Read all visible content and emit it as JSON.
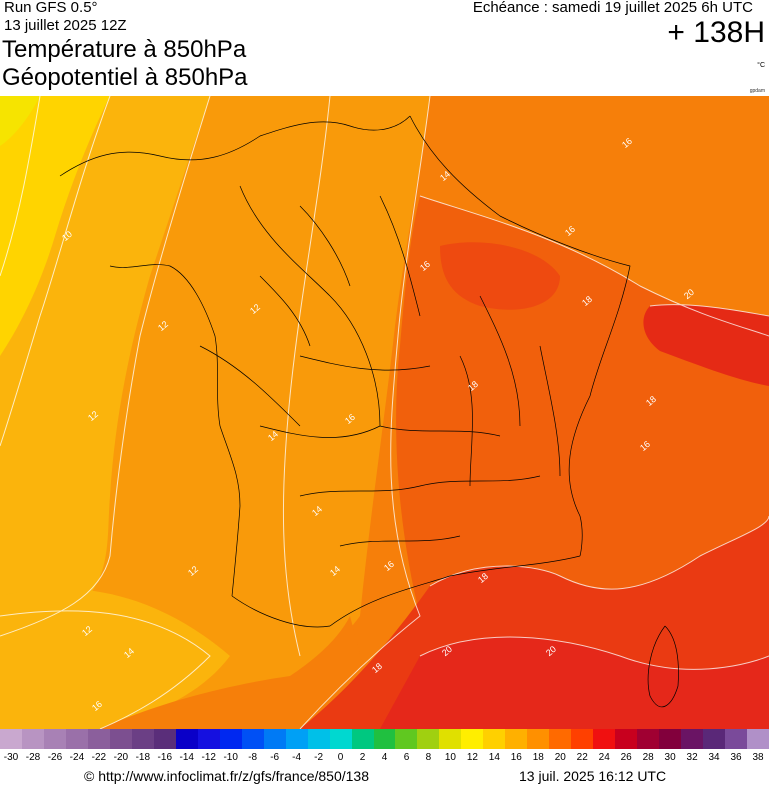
{
  "header": {
    "run": "Run GFS 0.5°",
    "date": "13 juillet 2025 12Z",
    "title1": "Température à 850hPa",
    "title2": "Géopotentiel à 850hPa",
    "echeance": "Echéance : samedi 19 juillet 2025 6h UTC",
    "hour": "+ 138H",
    "unit": "°C",
    "credit": "gpdam"
  },
  "map": {
    "contour_labels": [
      "10",
      "12",
      "12",
      "12",
      "12",
      "12",
      "14",
      "14",
      "14",
      "14",
      "14",
      "16",
      "16",
      "16",
      "16",
      "16",
      "16",
      "16",
      "18",
      "18",
      "18",
      "18",
      "18",
      "20",
      "20",
      "20"
    ],
    "colors": {
      "t8": "#ffcc00",
      "t10": "#ffdd00",
      "t12": "#fbb40c",
      "t14": "#f99a0a",
      "t16": "#f67f0a",
      "t18": "#f1600c",
      "t20": "#ea3a12",
      "t22": "#e01f1c",
      "border": "#000000",
      "contour": "#ffffff"
    }
  },
  "scale": {
    "labels": [
      "-30",
      "-28",
      "-26",
      "-24",
      "-22",
      "-20",
      "-18",
      "-16",
      "-14",
      "-12",
      "-10",
      "-8",
      "-6",
      "-4",
      "-2",
      "0",
      "2",
      "4",
      "6",
      "8",
      "10",
      "12",
      "14",
      "16",
      "18",
      "20",
      "22",
      "24",
      "26",
      "28",
      "30",
      "32",
      "34",
      "36",
      "38"
    ],
    "colors": [
      "#c9a8cf",
      "#b894c2",
      "#a881b5",
      "#9a70a9",
      "#8b5f9c",
      "#7c4f90",
      "#6b3f85",
      "#5a2e7a",
      "#0a00c8",
      "#1510e0",
      "#0028f0",
      "#0050f5",
      "#007af5",
      "#00a0f5",
      "#00c0e8",
      "#00d8d0",
      "#00c880",
      "#20c040",
      "#60c820",
      "#a0d010",
      "#e0e000",
      "#ffee00",
      "#ffd000",
      "#ffb000",
      "#ff9000",
      "#ff6a00",
      "#ff4000",
      "#f01010",
      "#c8001e",
      "#a00032",
      "#82003c",
      "#6a1464",
      "#5a2878",
      "#7a4a9a",
      "#b090c8"
    ]
  },
  "footer": {
    "url": "© http://www.infoclimat.fr/z/gfs/france/850/138",
    "generated": "13 juil. 2025 16:12 UTC"
  }
}
